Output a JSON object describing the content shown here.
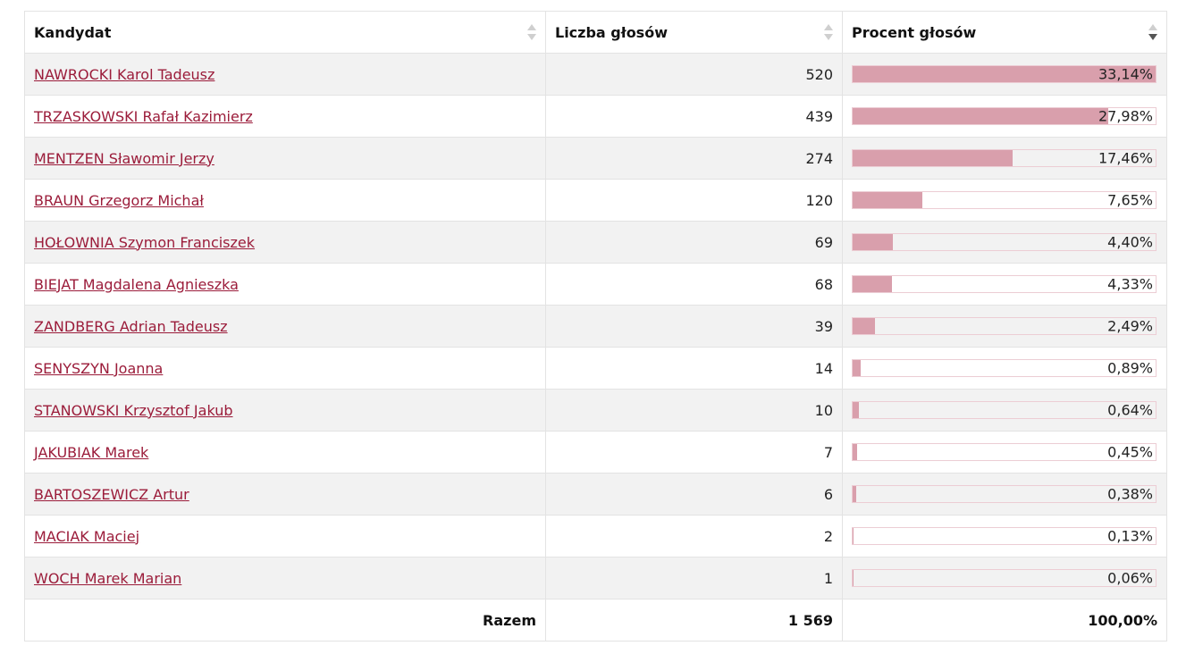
{
  "table": {
    "headers": {
      "candidate": "Kandydat",
      "votes": "Liczba głosów",
      "percent": "Procent głosów"
    },
    "rows": [
      {
        "name": "NAWROCKI Karol Tadeusz",
        "votes": "520",
        "percent": "33,14%",
        "share": 0.3314
      },
      {
        "name": "TRZASKOWSKI Rafał Kazimierz",
        "votes": "439",
        "percent": "27,98%",
        "share": 0.2798
      },
      {
        "name": "MENTZEN Sławomir Jerzy",
        "votes": "274",
        "percent": "17,46%",
        "share": 0.1746
      },
      {
        "name": "BRAUN Grzegorz Michał",
        "votes": "120",
        "percent": "7,65%",
        "share": 0.0765
      },
      {
        "name": "HOŁOWNIA Szymon Franciszek",
        "votes": "69",
        "percent": "4,40%",
        "share": 0.044
      },
      {
        "name": "BIEJAT Magdalena Agnieszka",
        "votes": "68",
        "percent": "4,33%",
        "share": 0.0433
      },
      {
        "name": "ZANDBERG Adrian Tadeusz",
        "votes": "39",
        "percent": "2,49%",
        "share": 0.0249
      },
      {
        "name": "SENYSZYN Joanna",
        "votes": "14",
        "percent": "0,89%",
        "share": 0.0089
      },
      {
        "name": "STANOWSKI Krzysztof Jakub",
        "votes": "10",
        "percent": "0,64%",
        "share": 0.0064
      },
      {
        "name": "JAKUBIAK Marek",
        "votes": "7",
        "percent": "0,45%",
        "share": 0.0045
      },
      {
        "name": "BARTOSZEWICZ Artur",
        "votes": "6",
        "percent": "0,38%",
        "share": 0.0038
      },
      {
        "name": "MACIAK Maciej",
        "votes": "2",
        "percent": "0,13%",
        "share": 0.0013
      },
      {
        "name": "WOCH Marek Marian",
        "votes": "1",
        "percent": "0,06%",
        "share": 0.0006
      }
    ],
    "total": {
      "label": "Razem",
      "votes": "1 569",
      "percent": "100,00%"
    }
  },
  "colors": {
    "link": "#9b1c3a",
    "bar_fill": "#d99fac",
    "bar_border": "#eccdd4",
    "stripe": "#f2f2f2"
  },
  "icons": {
    "sort_candidate": "sort-both-icon",
    "sort_votes": "sort-both-icon",
    "sort_percent": "sort-descending-icon"
  }
}
